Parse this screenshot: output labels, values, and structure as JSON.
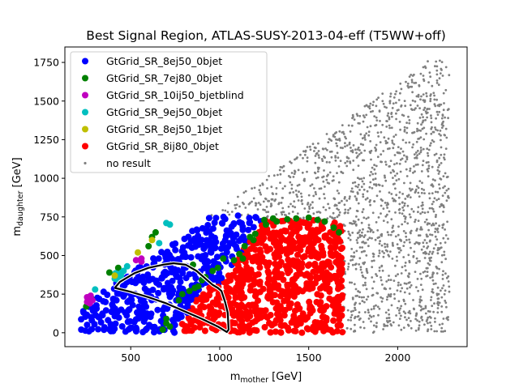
{
  "chart_data": {
    "type": "scatter",
    "title": "Best Signal Region, ATLAS-SUSY-2013-04-eff (T5WW+off)",
    "xlabel": {
      "main": "m",
      "sub": "mother",
      "unit": " [GeV]"
    },
    "ylabel": {
      "main": "m",
      "sub": "daughter",
      "unit": " [GeV]"
    },
    "xlim": [
      130,
      2390
    ],
    "ylim": [
      -90,
      1850
    ],
    "xticks": [
      500,
      1000,
      1500,
      2000
    ],
    "yticks": [
      0,
      250,
      500,
      750,
      1000,
      1250,
      1500,
      1750
    ],
    "grid": false,
    "legend_position": "upper-left",
    "series": [
      {
        "name": "GtGrid_SR_8ej50_0bjet",
        "color": "#0000ff",
        "region": "blue",
        "count": 430
      },
      {
        "name": "GtGrid_SR_7ej80_0bjet",
        "color": "#008000",
        "region": "green",
        "count": 40
      },
      {
        "name": "GtGrid_SR_10ij50_bjetblind",
        "color": "#bf00bf",
        "region": "magenta",
        "count": 8
      },
      {
        "name": "GtGrid_SR_9ej50_0bjet",
        "color": "#00bfbf",
        "region": "cyan",
        "count": 14
      },
      {
        "name": "GtGrid_SR_8ej50_1bjet",
        "color": "#bfbf00",
        "region": "yellow",
        "count": 3
      },
      {
        "name": "GtGrid_SR_8ij80_0bjet",
        "color": "#ff0000",
        "region": "red",
        "count": 720
      },
      {
        "name": "no result",
        "color": "#808080",
        "region": "grey",
        "count": 1500
      }
    ],
    "exclusion_contour": {
      "color": "#000000",
      "points": [
        [
          410,
          290
        ],
        [
          440,
          330
        ],
        [
          520,
          385
        ],
        [
          600,
          420
        ],
        [
          680,
          440
        ],
        [
          740,
          450
        ],
        [
          810,
          440
        ],
        [
          870,
          400
        ],
        [
          920,
          350
        ],
        [
          960,
          310
        ],
        [
          990,
          290
        ],
        [
          1010,
          270
        ],
        [
          1030,
          200
        ],
        [
          1045,
          130
        ],
        [
          1050,
          20
        ],
        [
          1040,
          5
        ],
        [
          990,
          40
        ],
        [
          900,
          90
        ],
        [
          800,
          140
        ],
        [
          700,
          190
        ],
        [
          600,
          230
        ],
        [
          500,
          265
        ],
        [
          430,
          285
        ],
        [
          410,
          290
        ]
      ]
    }
  }
}
